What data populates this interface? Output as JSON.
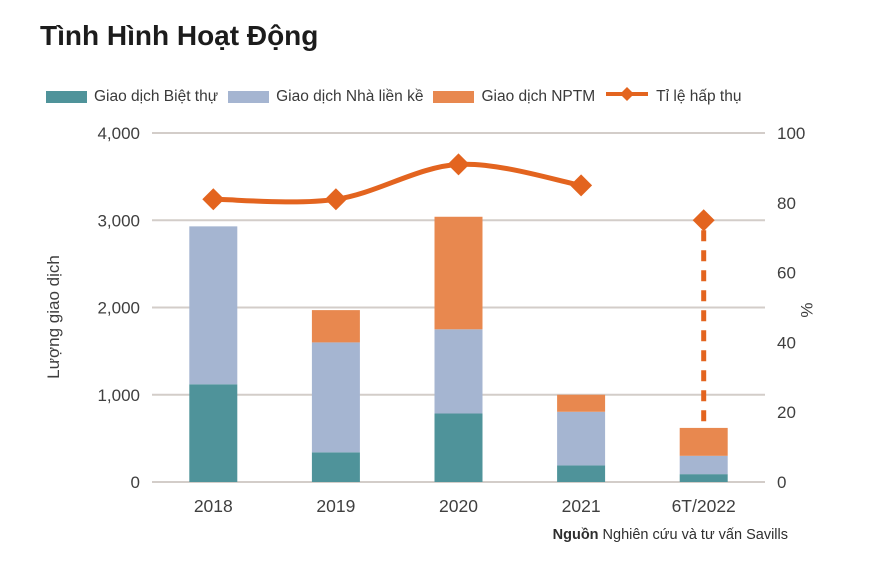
{
  "title": "Tình Hình Hoạt Động",
  "source": {
    "label": "Nguồn",
    "text": "Nghiên cứu và tư vấn Savills"
  },
  "colors": {
    "villa": "#4f939a",
    "townhouse": "#a5b5d1",
    "shophouse": "#e8884f",
    "absorption_line": "#e3641f",
    "gridline": "#d3cdc9",
    "tick_text": "#3f3f3f"
  },
  "chart_data": {
    "type": "bar",
    "subtype": "stacked bars with secondary-axis line (absorption rate)",
    "title": "Tình Hình Hoạt Động",
    "categories": [
      "2018",
      "2019",
      "2020",
      "2021",
      "6T/2022"
    ],
    "series": [
      {
        "name": "Giao dịch Biệt thự",
        "type": "bar",
        "color": "#4f939a",
        "values": [
          1120,
          340,
          785,
          190,
          90
        ]
      },
      {
        "name": "Giao dịch Nhà liền kề",
        "type": "bar",
        "color": "#a5b5d1",
        "values": [
          1810,
          1260,
          965,
          615,
          210
        ]
      },
      {
        "name": "Giao dịch NPTM",
        "type": "bar",
        "color": "#e8884f",
        "values": [
          0,
          370,
          1290,
          195,
          320
        ]
      }
    ],
    "bar_totals": [
      2930,
      1970,
      3040,
      1000,
      620
    ],
    "line": {
      "name": "Tỉ lệ hấp thụ",
      "color": "#e3641f",
      "axis": "right",
      "values": [
        81,
        81,
        91,
        85,
        75
      ],
      "marker": "diamond",
      "dashed_drop_at": "6T/2022",
      "style_note": "solid smooth line 2018–2021; 6T/2022 is an isolated diamond with a dashed vertical drop to the top of its bar"
    },
    "left_axis": {
      "title": "Lượng giao dịch",
      "min": 0,
      "max": 4000,
      "ticks": [
        "0",
        "1,000",
        "2,000",
        "3,000",
        "4,000"
      ]
    },
    "right_axis": {
      "title": "%",
      "min": 0,
      "max": 100,
      "ticks": [
        "0",
        "20",
        "40",
        "60",
        "80",
        "100"
      ]
    },
    "grid": "horizontal gridlines at left-axis ticks",
    "legend_position": "top"
  }
}
